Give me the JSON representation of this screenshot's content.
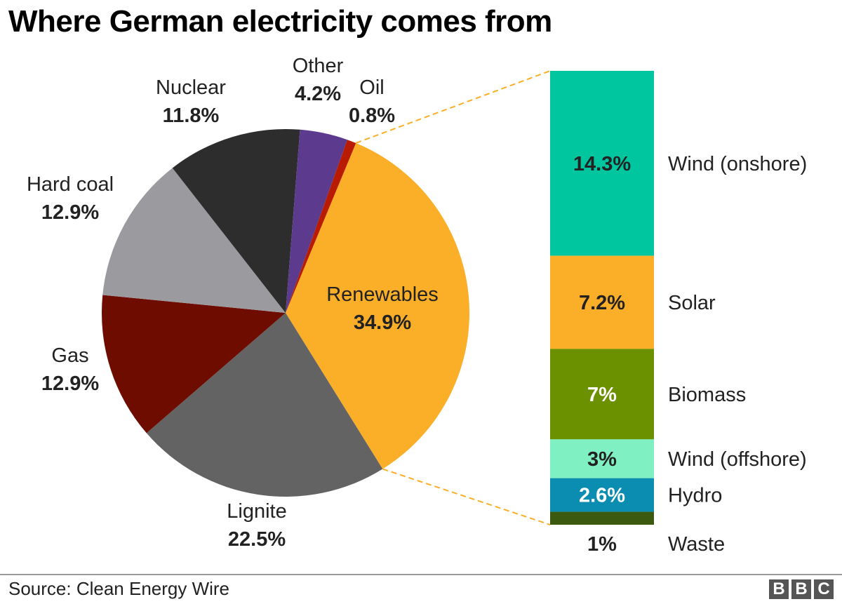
{
  "title": "Where German electricity comes from",
  "source": "Source: Clean Energy Wire",
  "logo": {
    "letters": [
      "B",
      "B",
      "C"
    ]
  },
  "chart_data": [
    {
      "type": "pie",
      "slices": [
        {
          "name": "Renewables",
          "label": "34.9%",
          "value": 34.9,
          "color": "#fbae27"
        },
        {
          "name": "Lignite",
          "label": "22.5%",
          "value": 22.5,
          "color": "#636363"
        },
        {
          "name": "Gas",
          "label": "12.9%",
          "value": 12.9,
          "color": "#6e0c00"
        },
        {
          "name": "Hard coal",
          "label": "12.9%",
          "value": 12.9,
          "color": "#9b9a9f"
        },
        {
          "name": "Nuclear",
          "label": "11.8%",
          "value": 11.8,
          "color": "#2d2d2d"
        },
        {
          "name": "Other",
          "label": "4.2%",
          "value": 4.2,
          "color": "#5c3b8e"
        },
        {
          "name": "Oil",
          "label": "0.8%",
          "value": 0.8,
          "color": "#b81b00"
        }
      ]
    },
    {
      "type": "bar",
      "stacked": true,
      "segments": [
        {
          "name": "Wind (onshore)",
          "label": "14.3%",
          "value": 14.3,
          "color": "#00c6a0"
        },
        {
          "name": "Solar",
          "label": "7.2%",
          "value": 7.2,
          "color": "#fbae27"
        },
        {
          "name": "Biomass",
          "label": "7%",
          "value": 7.0,
          "color": "#6b9100"
        },
        {
          "name": "Wind (offshore)",
          "label": "3%",
          "value": 3.0,
          "color": "#7ff0c2"
        },
        {
          "name": "Hydro",
          "label": "2.6%",
          "value": 2.6,
          "color": "#0a8db0"
        },
        {
          "name": "Waste",
          "label": "1%",
          "value": 1.0,
          "color": "#3b5a10"
        }
      ]
    }
  ]
}
